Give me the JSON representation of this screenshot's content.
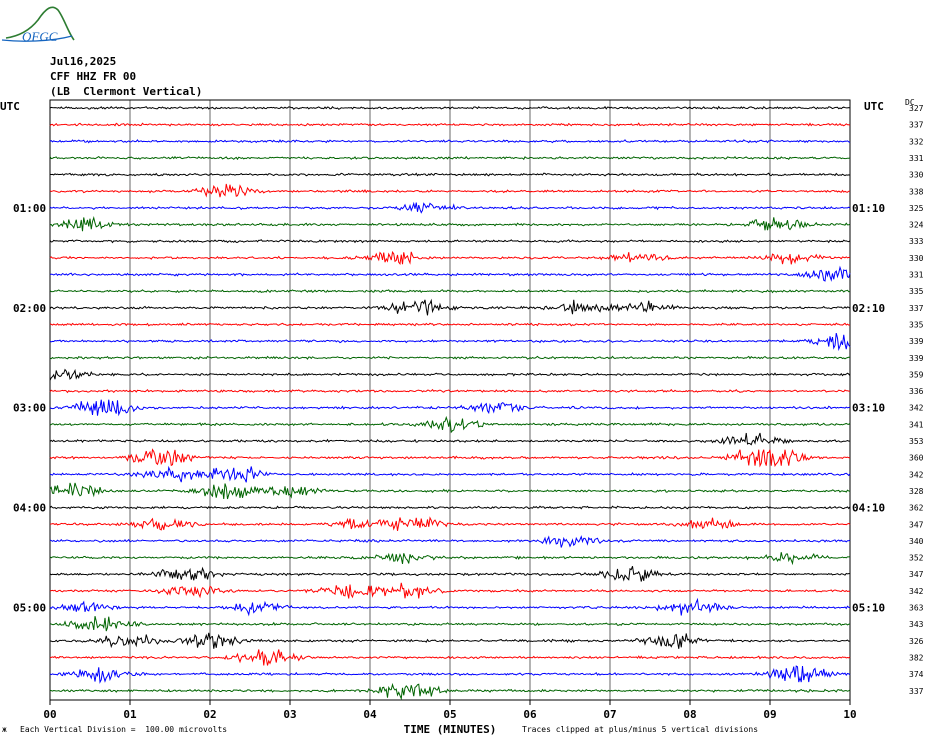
{
  "logo_text": "OFGC",
  "header": {
    "date": "Jul16,2025",
    "channel": "CFF HHZ FR 00",
    "station": "(LB  Clermont Vertical)"
  },
  "left_axis_title": "UTC",
  "right_axis_title": "UTC",
  "dc_header": "DC",
  "colors": {
    "trace_cycle": [
      "#000000",
      "#ff0000",
      "#0000ff",
      "#006400"
    ],
    "grid": "#000000"
  },
  "chart_data": {
    "type": "line",
    "description_kind": "helicorder",
    "xlabel": "TIME (MINUTES)",
    "x_ticks": [
      "00",
      "01",
      "02",
      "03",
      "04",
      "05",
      "06",
      "07",
      "08",
      "09",
      "10"
    ],
    "xlim": [
      0,
      10
    ],
    "left_time_labels": [
      {
        "row": 6,
        "text": "01:00"
      },
      {
        "row": 12,
        "text": "02:00"
      },
      {
        "row": 18,
        "text": "03:00"
      },
      {
        "row": 24,
        "text": "04:00"
      },
      {
        "row": 30,
        "text": "05:00"
      }
    ],
    "right_time_labels": [
      {
        "row": 6,
        "text": "01:10"
      },
      {
        "row": 12,
        "text": "02:10"
      },
      {
        "row": 18,
        "text": "03:10"
      },
      {
        "row": 24,
        "text": "04:10"
      },
      {
        "row": 30,
        "text": "05:10"
      }
    ],
    "dc_offsets": [
      "327",
      "337",
      "332",
      "331",
      "330",
      "338",
      "325",
      "324",
      "333",
      "330",
      "331",
      "335",
      "337",
      "335",
      "339",
      "339",
      "359",
      "336",
      "342",
      "341",
      "353",
      "360",
      "342",
      "328",
      "362",
      "347",
      "340",
      "352",
      "347",
      "342",
      "363",
      "343",
      "326",
      "382",
      "374",
      "337"
    ],
    "bursts": [
      {
        "row": 5,
        "minute": 2.2,
        "amp": 2.2
      },
      {
        "row": 6,
        "minute": 4.7,
        "amp": 1.4
      },
      {
        "row": 7,
        "minute": 0.5,
        "amp": 1.8
      },
      {
        "row": 7,
        "minute": 9.1,
        "amp": 2.2
      },
      {
        "row": 9,
        "minute": 4.3,
        "amp": 1.8
      },
      {
        "row": 9,
        "minute": 7.4,
        "amp": 2.0
      },
      {
        "row": 9,
        "minute": 9.3,
        "amp": 1.5
      },
      {
        "row": 10,
        "minute": 9.8,
        "amp": 2.8
      },
      {
        "row": 12,
        "minute": 4.6,
        "amp": 3.5
      },
      {
        "row": 12,
        "minute": 6.6,
        "amp": 2.2
      },
      {
        "row": 12,
        "minute": 7.4,
        "amp": 1.8
      },
      {
        "row": 14,
        "minute": 9.9,
        "amp": 2.8
      },
      {
        "row": 16,
        "minute": 0.1,
        "amp": 1.8
      },
      {
        "row": 18,
        "minute": 0.7,
        "amp": 3.5
      },
      {
        "row": 18,
        "minute": 5.6,
        "amp": 2.2
      },
      {
        "row": 19,
        "minute": 5.0,
        "amp": 2.2
      },
      {
        "row": 20,
        "minute": 8.8,
        "amp": 2.5
      },
      {
        "row": 21,
        "minute": 1.4,
        "amp": 2.8
      },
      {
        "row": 21,
        "minute": 8.9,
        "amp": 3.2
      },
      {
        "row": 21,
        "minute": 9.1,
        "amp": 4.0
      },
      {
        "row": 22,
        "minute": 1.5,
        "amp": 2.0
      },
      {
        "row": 22,
        "minute": 2.3,
        "amp": 2.6
      },
      {
        "row": 23,
        "minute": 0.3,
        "amp": 2.8
      },
      {
        "row": 23,
        "minute": 2.2,
        "amp": 2.8
      },
      {
        "row": 23,
        "minute": 3.0,
        "amp": 1.8
      },
      {
        "row": 25,
        "minute": 1.4,
        "amp": 1.8
      },
      {
        "row": 25,
        "minute": 3.9,
        "amp": 2.0
      },
      {
        "row": 25,
        "minute": 4.6,
        "amp": 2.4
      },
      {
        "row": 25,
        "minute": 8.2,
        "amp": 1.6
      },
      {
        "row": 26,
        "minute": 6.5,
        "amp": 2.0
      },
      {
        "row": 27,
        "minute": 4.4,
        "amp": 1.6
      },
      {
        "row": 27,
        "minute": 9.2,
        "amp": 1.8
      },
      {
        "row": 28,
        "minute": 1.7,
        "amp": 2.6
      },
      {
        "row": 28,
        "minute": 7.2,
        "amp": 2.2
      },
      {
        "row": 29,
        "minute": 1.8,
        "amp": 2.2
      },
      {
        "row": 29,
        "minute": 3.8,
        "amp": 2.4
      },
      {
        "row": 29,
        "minute": 4.5,
        "amp": 2.2
      },
      {
        "row": 30,
        "minute": 0.5,
        "amp": 1.8
      },
      {
        "row": 30,
        "minute": 2.6,
        "amp": 1.8
      },
      {
        "row": 30,
        "minute": 8.0,
        "amp": 2.2
      },
      {
        "row": 31,
        "minute": 0.6,
        "amp": 2.6
      },
      {
        "row": 32,
        "minute": 1.0,
        "amp": 2.4
      },
      {
        "row": 32,
        "minute": 2.0,
        "amp": 2.4
      },
      {
        "row": 32,
        "minute": 7.8,
        "amp": 2.4
      },
      {
        "row": 33,
        "minute": 2.7,
        "amp": 3.2
      },
      {
        "row": 34,
        "minute": 0.6,
        "amp": 2.8
      },
      {
        "row": 34,
        "minute": 9.4,
        "amp": 3.0
      },
      {
        "row": 35,
        "minute": 4.5,
        "amp": 3.2
      }
    ]
  },
  "footnotes": {
    "left": "Each Vertical Division =  100.00 microvolts",
    "right": "Traces clipped at plus/minus 5 vertical divisions",
    "corner_mark": "ж"
  }
}
